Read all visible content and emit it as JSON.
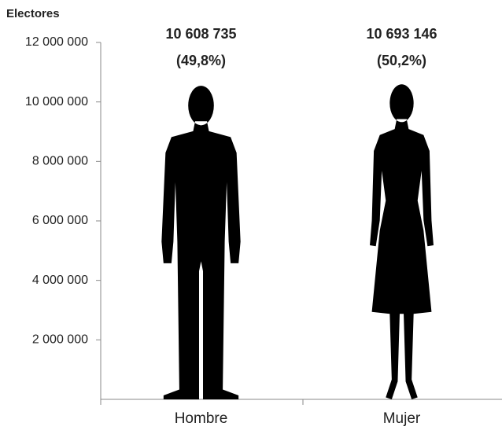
{
  "chart_data": {
    "type": "pictograph",
    "y_label": "Electores",
    "categories": [
      "Hombre",
      "Mujer"
    ],
    "values": [
      10608735,
      10693146
    ],
    "value_labels": [
      "10 608 735",
      "10 693 146"
    ],
    "shares": {
      "values": [
        49.8,
        50.2
      ],
      "value_labels": [
        "(49,8%)",
        "(50,2%)"
      ]
    },
    "color": "#000000",
    "ylim": [
      0,
      12000000
    ],
    "yticks": [
      {
        "value": 2000000,
        "label": "2 000 000"
      },
      {
        "value": 4000000,
        "label": "4 000 000"
      },
      {
        "value": 6000000,
        "label": "6 000 000"
      },
      {
        "value": 8000000,
        "label": "8 000 000"
      },
      {
        "value": 10000000,
        "label": "10 000 000"
      },
      {
        "value": 12000000,
        "label": "12 000 000"
      }
    ]
  }
}
